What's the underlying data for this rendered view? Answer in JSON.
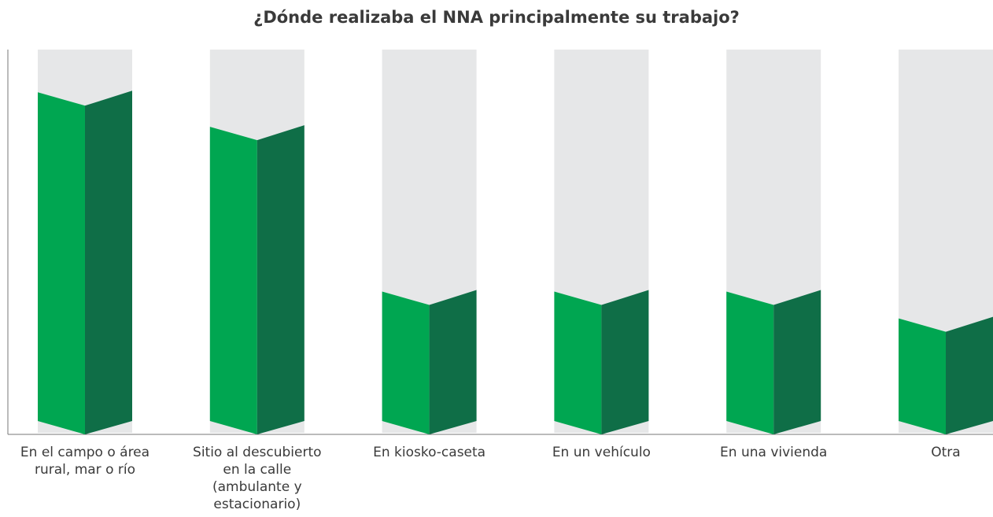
{
  "chart_data": {
    "type": "bar",
    "title": "¿Dónde realizaba el NNA principalmente su trabajo?",
    "categories": [
      "En el campo o área rural, mar o río",
      "Sitio al descubierto en la calle (ambulante y estacionario)",
      "En kiosko-caseta",
      "En un vehículo",
      "En una vivienda",
      "Otra"
    ],
    "values": [
      87,
      78,
      35,
      35,
      35,
      28
    ],
    "ylim": [
      0,
      100
    ],
    "color": "#00a651",
    "shade_color": "#0f6e47",
    "background_color": "#e6e7e8"
  }
}
